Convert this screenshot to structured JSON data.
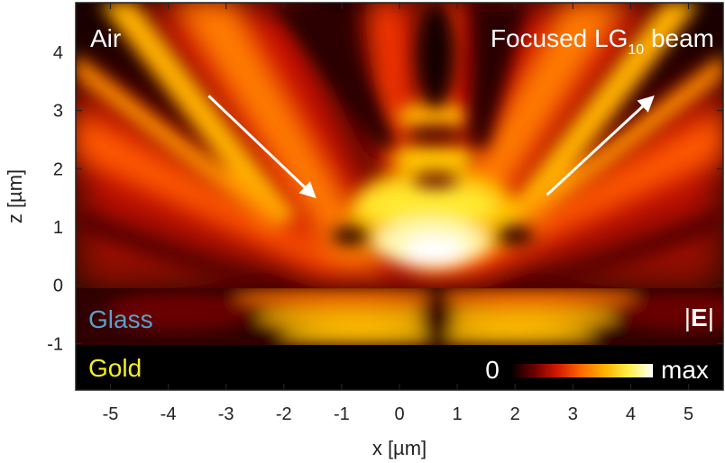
{
  "figure": {
    "xlabel": "x [µm]",
    "ylabel": "z [µm]",
    "xlim": [
      -5.6,
      5.6
    ],
    "zlim": [
      -1.8,
      4.85
    ],
    "x_ticks": [
      -5,
      -4,
      -3,
      -2,
      -1,
      0,
      1,
      2,
      3,
      4,
      5
    ],
    "z_ticks": [
      -1,
      0,
      1,
      2,
      3,
      4
    ],
    "layers": {
      "air": {
        "label": "Air",
        "color": "#ffffff",
        "z_from": 0,
        "z_to": 4.85
      },
      "glass": {
        "label": "Glass",
        "color": "#5aa0c8",
        "z_from": -1,
        "z_to": 0
      },
      "gold": {
        "label": "Gold",
        "color": "#f5ee20",
        "z_from": -1.8,
        "z_to": -1
      }
    },
    "title": {
      "main": "Focused LG",
      "subscript": "10",
      "suffix": " beam"
    },
    "field_label": {
      "pre": "|",
      "bold": "E",
      "post": "|"
    },
    "colorbar": {
      "min_label": "0",
      "max_label": "max",
      "colors": [
        "#000000",
        "#6b0000",
        "#d41a00",
        "#ff6a00",
        "#ffb300",
        "#fff04a",
        "#ffffff"
      ]
    },
    "arrows": [
      {
        "name": "incident-beam-arrow",
        "from": [
          -3.3,
          3.25
        ],
        "to": [
          -1.5,
          1.55
        ]
      },
      {
        "name": "reflected-beam-arrow",
        "from": [
          2.55,
          1.55
        ],
        "to": [
          4.35,
          3.2
        ]
      }
    ],
    "colors": {
      "frame": "#222222",
      "arrow": "#ffffff"
    }
  }
}
